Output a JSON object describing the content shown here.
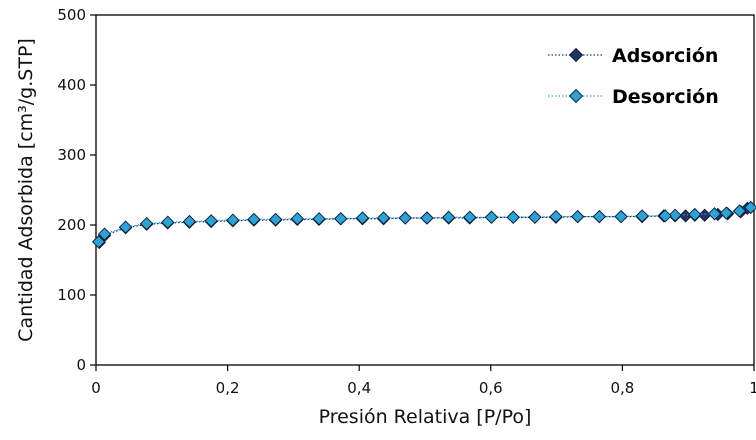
{
  "chart_data": {
    "type": "scatter",
    "title": "",
    "xlabel": "Presión Relativa [P/Po]",
    "ylabel": "Cantidad Adsorbida [cm³/g.STP]",
    "xlim": [
      0,
      1
    ],
    "ylim": [
      0,
      500
    ],
    "xticks": [
      0,
      0.2,
      0.4,
      0.6,
      0.8,
      1
    ],
    "xtick_labels": [
      "0",
      "0,2",
      "0,4",
      "0,6",
      "0,8",
      "1"
    ],
    "yticks": [
      0,
      100,
      200,
      300,
      400,
      500
    ],
    "ytick_labels": [
      "0",
      "100",
      "200",
      "300",
      "400",
      "500"
    ],
    "grid": false,
    "legend_position": "top-right",
    "series": [
      {
        "name": "Adsorción",
        "color": "#1f3566",
        "marker": "diamond",
        "line": "dotted",
        "x": [
          0.005,
          0.013,
          0.045,
          0.077,
          0.109,
          0.142,
          0.175,
          0.208,
          0.24,
          0.273,
          0.306,
          0.339,
          0.372,
          0.405,
          0.437,
          0.47,
          0.503,
          0.536,
          0.568,
          0.601,
          0.634,
          0.667,
          0.699,
          0.732,
          0.765,
          0.798,
          0.83,
          0.863,
          0.88,
          0.896,
          0.91,
          0.925,
          0.945,
          0.96,
          0.98,
          0.99
        ],
        "y": [
          175,
          185,
          196,
          201,
          203,
          204,
          205,
          206,
          207,
          207,
          208,
          208,
          209,
          209,
          209,
          210,
          210,
          210,
          210,
          211,
          211,
          211,
          211,
          212,
          212,
          212,
          212,
          213,
          213,
          213,
          214,
          214,
          215,
          216,
          219,
          224
        ]
      },
      {
        "name": "Desorción",
        "color": "#2aa3d8",
        "marker": "diamond",
        "line": "dotted",
        "x": [
          0.995,
          0.978,
          0.958,
          0.94,
          0.91,
          0.88,
          0.865,
          0.83,
          0.798,
          0.765,
          0.732,
          0.699,
          0.667,
          0.634,
          0.601,
          0.568,
          0.536,
          0.503,
          0.47,
          0.437,
          0.405,
          0.372,
          0.339,
          0.306,
          0.273,
          0.24,
          0.208,
          0.175,
          0.142,
          0.109,
          0.077,
          0.045,
          0.013,
          0.004
        ],
        "y": [
          225,
          220,
          217,
          216,
          215,
          214,
          213,
          213,
          212,
          212,
          212,
          212,
          211,
          211,
          211,
          211,
          211,
          210,
          210,
          210,
          210,
          209,
          209,
          209,
          208,
          208,
          207,
          206,
          205,
          204,
          202,
          197,
          187,
          176
        ]
      }
    ]
  }
}
